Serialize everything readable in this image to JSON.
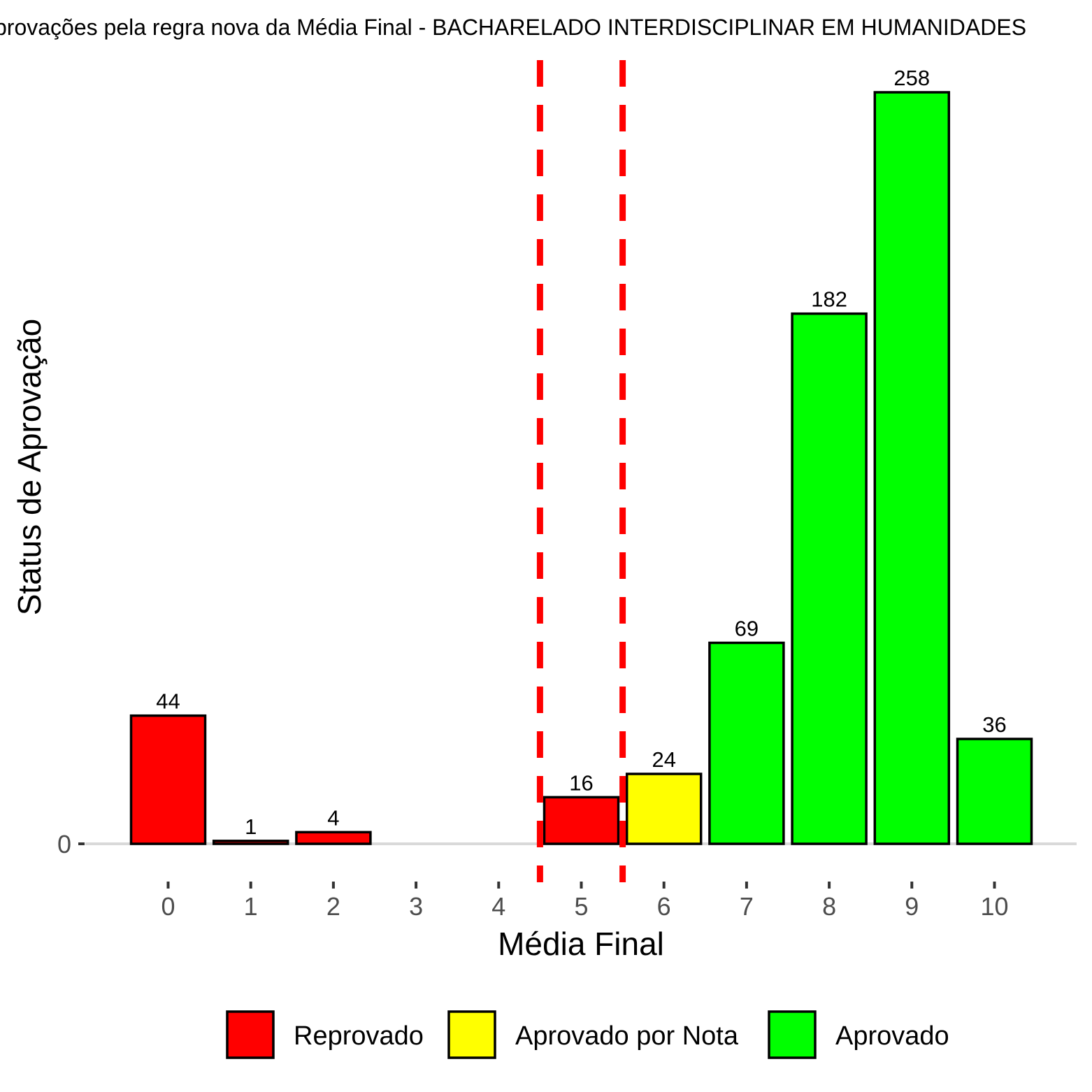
{
  "chart_data": {
    "type": "bar",
    "title": "provações pela regra nova da Média Final - BACHARELADO INTERDISCIPLINAR EM HUMANIDADES",
    "xlabel": "Média Final",
    "ylabel": "Status de Aprovação",
    "categories": [
      "0",
      "1",
      "2",
      "3",
      "4",
      "5",
      "6",
      "7",
      "8",
      "9",
      "10"
    ],
    "series": [
      {
        "name": "Reprovado",
        "color": "#ff0000",
        "values": [
          44,
          1,
          4,
          0,
          0,
          16,
          0,
          0,
          0,
          0,
          0
        ]
      },
      {
        "name": "Aprovado por Nota",
        "color": "#ffff00",
        "values": [
          0,
          0,
          0,
          0,
          0,
          0,
          24,
          0,
          0,
          0,
          0
        ]
      },
      {
        "name": "Aprovado",
        "color": "#00ff00",
        "values": [
          0,
          0,
          0,
          0,
          0,
          0,
          0,
          69,
          182,
          258,
          36
        ]
      }
    ],
    "data_labels": [
      "44",
      "1",
      "4",
      "",
      "",
      "16",
      "24",
      "69",
      "182",
      "258",
      "36"
    ],
    "y_ticks": [
      "0"
    ],
    "ylim": [
      0,
      258
    ],
    "reference_lines": {
      "x": [
        4.5,
        5.5
      ],
      "color": "#ff0000",
      "style": "dashed"
    },
    "grid": false,
    "legend_position": "bottom",
    "legend": [
      "Reprovado",
      "Aprovado por Nota",
      "Aprovado"
    ]
  }
}
